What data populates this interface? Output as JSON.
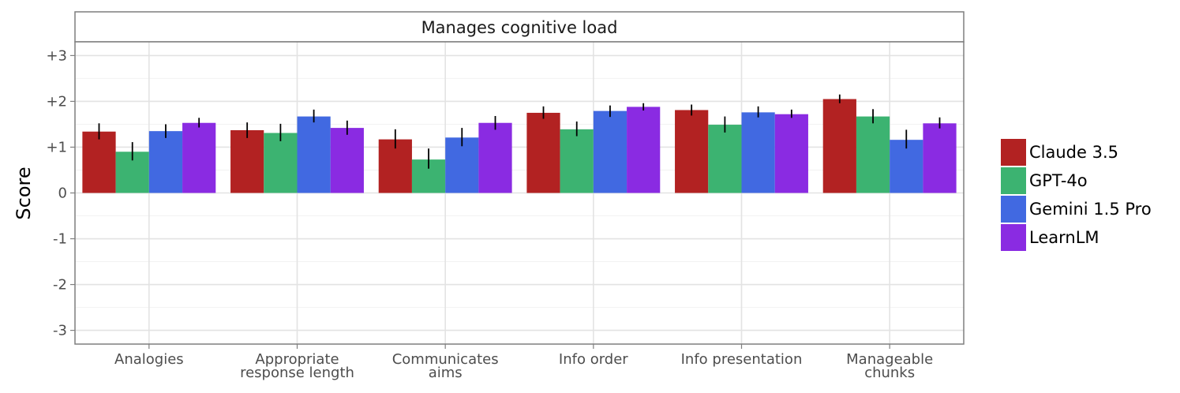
{
  "chart_data": {
    "type": "bar",
    "facet_title": "Manages cognitive load",
    "ylabel": "Score",
    "xlabel": "",
    "ylim": [
      -3.3,
      3.3
    ],
    "y_ticks": [
      {
        "value": 3,
        "label": "+3"
      },
      {
        "value": 2,
        "label": "+2"
      },
      {
        "value": 1,
        "label": "+1"
      },
      {
        "value": 0,
        "label": "0"
      },
      {
        "value": -1,
        "label": "-1"
      },
      {
        "value": -2,
        "label": "-2"
      },
      {
        "value": -3,
        "label": "-3"
      }
    ],
    "categories": [
      [
        "Analogies"
      ],
      [
        "Appropriate",
        "response length"
      ],
      [
        "Communicates",
        "aims"
      ],
      [
        "Info order"
      ],
      [
        "Info presentation"
      ],
      [
        "Manageable",
        "chunks"
      ]
    ],
    "series": [
      {
        "name": "Claude 3.5",
        "color": "#b22222",
        "values": [
          1.34,
          1.37,
          1.17,
          1.75,
          1.81,
          2.05
        ],
        "err_low": [
          1.17,
          1.2,
          0.97,
          1.62,
          1.69,
          1.96
        ],
        "err_high": [
          1.52,
          1.54,
          1.39,
          1.89,
          1.93,
          2.15
        ]
      },
      {
        "name": "GPT-4o",
        "color": "#3cb371",
        "values": [
          0.9,
          1.31,
          0.73,
          1.39,
          1.49,
          1.67
        ],
        "err_low": [
          0.71,
          1.13,
          0.53,
          1.24,
          1.32,
          1.52
        ],
        "err_high": [
          1.11,
          1.51,
          0.97,
          1.56,
          1.67,
          1.83
        ]
      },
      {
        "name": "Gemini 1.5 Pro",
        "color": "#4169e1",
        "values": [
          1.35,
          1.67,
          1.21,
          1.79,
          1.76,
          1.16
        ],
        "err_low": [
          1.2,
          1.54,
          1.02,
          1.66,
          1.65,
          0.97
        ],
        "err_high": [
          1.5,
          1.82,
          1.42,
          1.91,
          1.89,
          1.38
        ]
      },
      {
        "name": "LearnLM",
        "color": "#8a2be2",
        "values": [
          1.53,
          1.42,
          1.53,
          1.88,
          1.72,
          1.52
        ],
        "err_low": [
          1.43,
          1.27,
          1.38,
          1.8,
          1.64,
          1.41
        ],
        "err_high": [
          1.64,
          1.58,
          1.68,
          1.96,
          1.82,
          1.65
        ]
      }
    ],
    "grid": true,
    "legend_position": "right"
  }
}
